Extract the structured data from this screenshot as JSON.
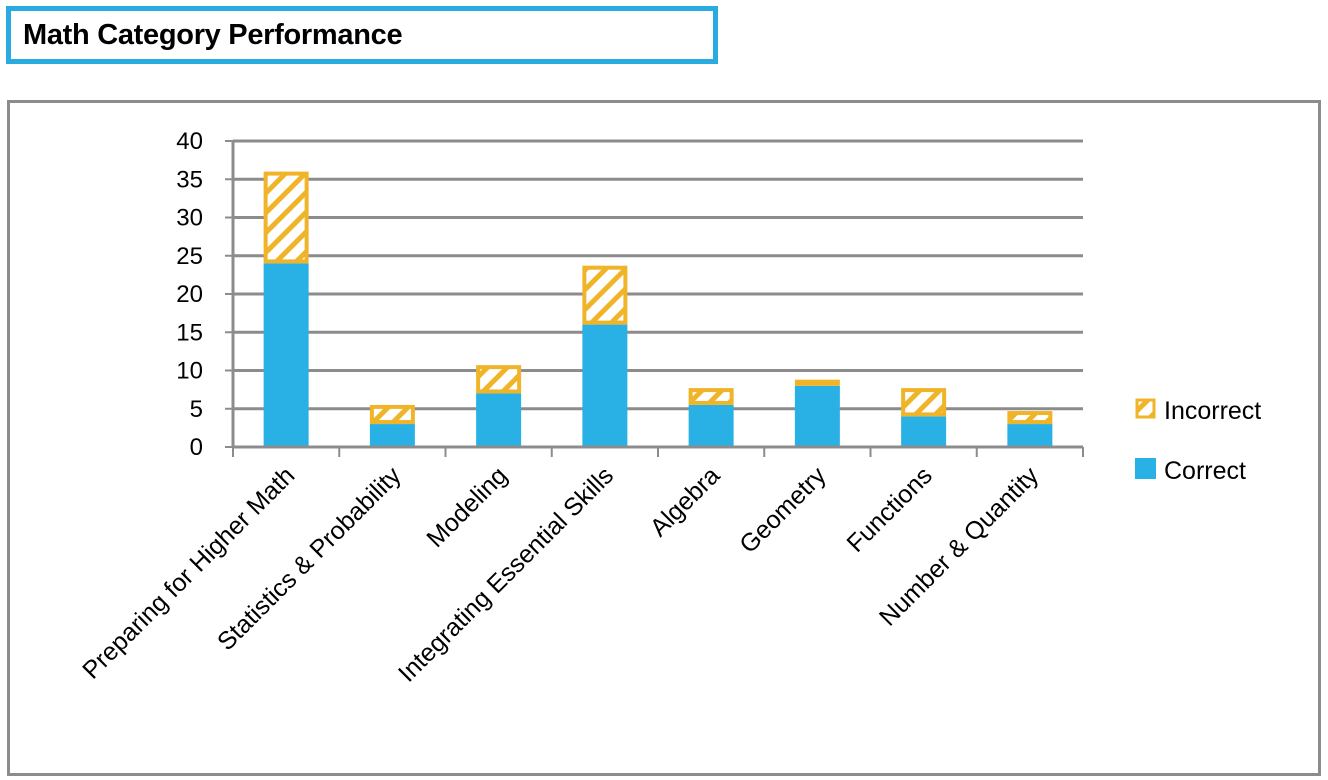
{
  "title": "Math Category Performance",
  "colors": {
    "correct": "#29b1e6",
    "incorrect": "#f0b429",
    "grid": "#8c8c8c"
  },
  "chart_data": {
    "type": "bar",
    "stacked": true,
    "categories": [
      "Preparing for Higher Math",
      "Statistics & Probability",
      "Modeling",
      "Integrating Essential Skills",
      "Algebra",
      "Geometry",
      "Functions",
      "Number & Quantity"
    ],
    "series": [
      {
        "name": "Correct",
        "values": [
          24,
          3,
          7,
          16,
          5.5,
          8,
          4,
          3
        ]
      },
      {
        "name": "Incorrect",
        "values": [
          12,
          2.5,
          3.7,
          7.7,
          2.2,
          0.8,
          3.7,
          1.7
        ]
      }
    ],
    "ylim": [
      0,
      40
    ],
    "yticks": [
      0,
      5,
      10,
      15,
      20,
      25,
      30,
      35,
      40
    ],
    "grid": true,
    "legend": "right",
    "legend_order": [
      "Incorrect",
      "Correct"
    ]
  }
}
